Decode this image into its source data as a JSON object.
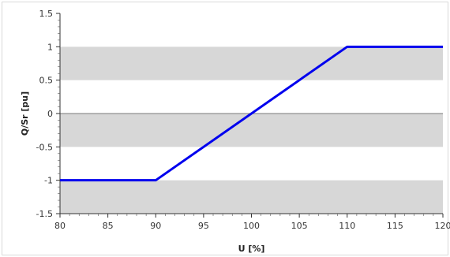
{
  "chart_data": {
    "type": "line",
    "title": "",
    "xlabel": "U [%]",
    "ylabel": "Q/Sr [pu]",
    "xlim": [
      80,
      120
    ],
    "ylim": [
      -1.5,
      1.5
    ],
    "x_ticks": [
      "80",
      "85",
      "90",
      "95",
      "100",
      "105",
      "110",
      "115",
      "120"
    ],
    "y_ticks": [
      "1.5",
      "1",
      "0.5",
      "0",
      "-0.5",
      "-1",
      "-1.5"
    ],
    "bands": [
      {
        "y_from": 0.5,
        "y_to": 1.0
      },
      {
        "y_from": -0.5,
        "y_to": 0.0
      },
      {
        "y_from": -1.5,
        "y_to": -1.0
      }
    ],
    "band_color": "#d7d7d7",
    "series": [
      {
        "color": "#0000ee",
        "x": [
          80,
          90,
          110,
          120
        ],
        "y": [
          -1,
          -1,
          1,
          1
        ]
      }
    ],
    "grid": false,
    "legend": "none"
  }
}
